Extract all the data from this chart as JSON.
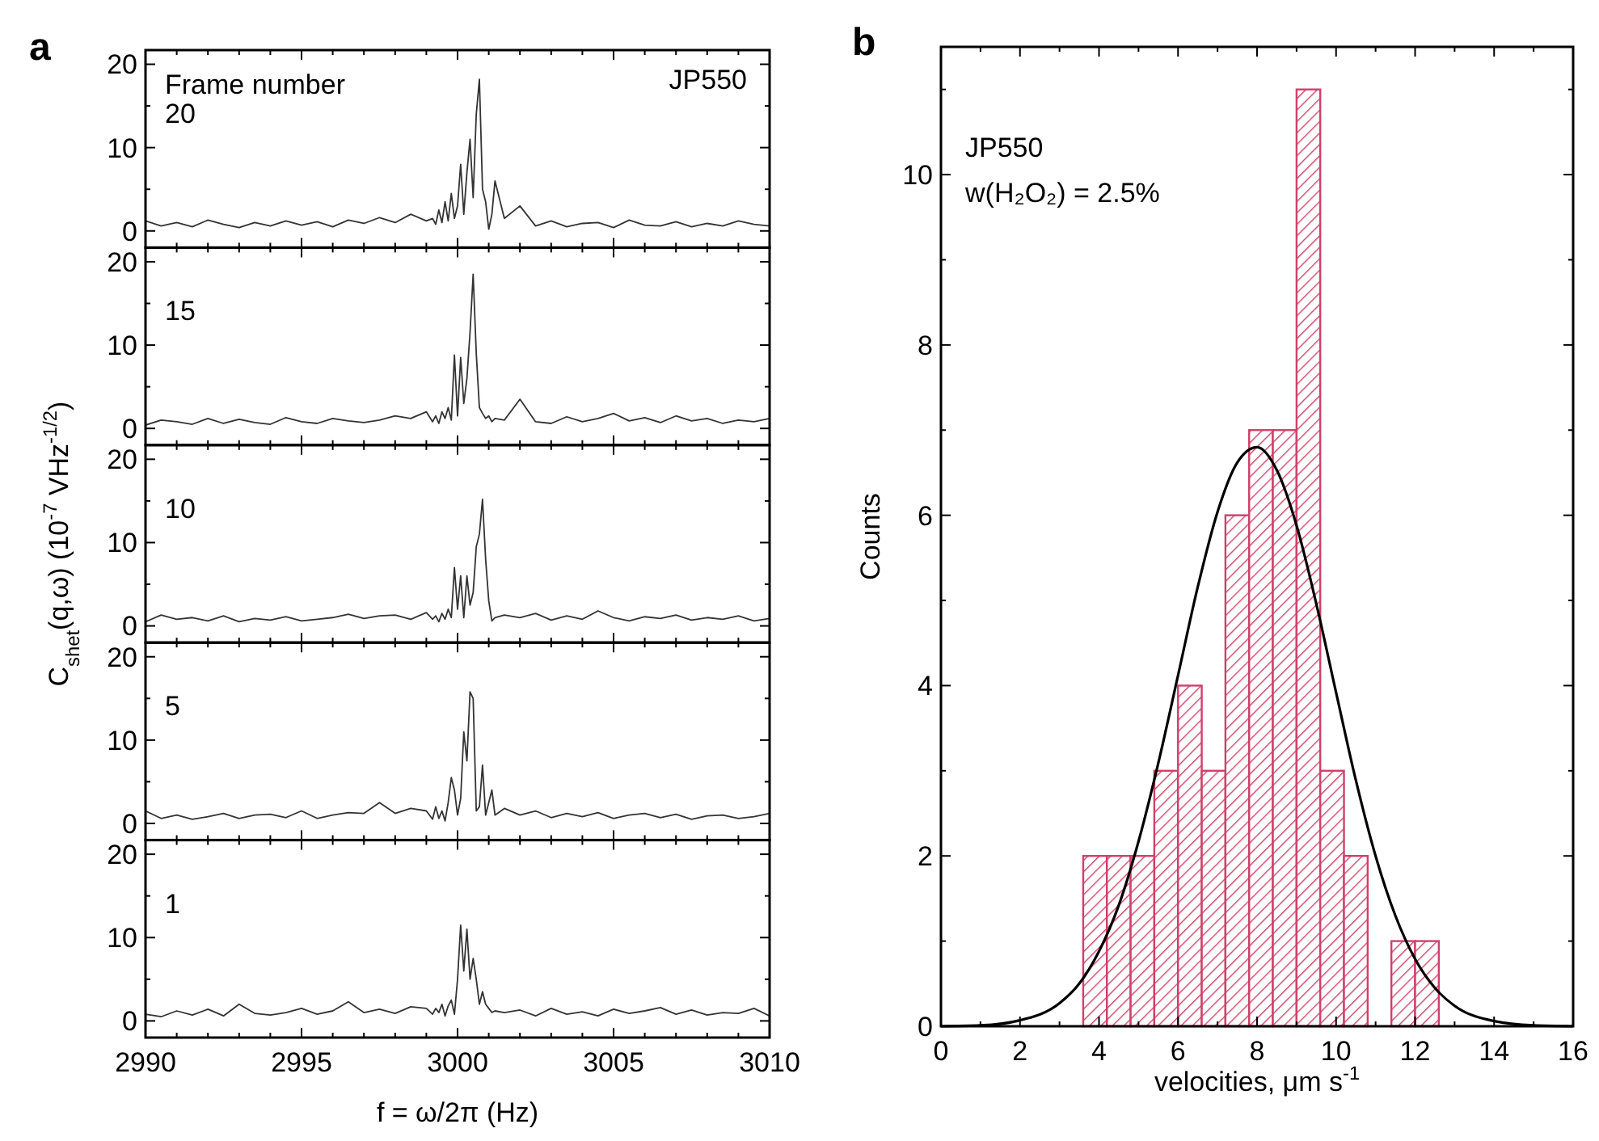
{
  "chart_data": [
    {
      "type": "line",
      "title": "a",
      "annotations": [
        "Frame number",
        "JP550"
      ],
      "x": [
        2990,
        2990.5,
        2991,
        2991.5,
        2992,
        2992.5,
        2993,
        2993.5,
        2994,
        2994.5,
        2995,
        2995.5,
        2996,
        2996.5,
        2997,
        2997.5,
        2998,
        2998.5,
        2999,
        2999.2,
        2999.3,
        2999.4,
        2999.5,
        2999.6,
        2999.7,
        2999.8,
        2999.9,
        3000,
        3000.1,
        3000.2,
        3000.3,
        3000.4,
        3000.5,
        3000.6,
        3000.7,
        3000.8,
        3000.9,
        3001,
        3001.1,
        3001.2,
        3001.5,
        3002,
        3002.5,
        3003,
        3003.5,
        3004,
        3004.5,
        3005,
        3005.5,
        3006,
        3006.5,
        3007,
        3007.5,
        3008,
        3008.5,
        3009,
        3009.5,
        3010
      ],
      "xlim": [
        2990,
        3010
      ],
      "xticks": [
        2990,
        {
          "value": 2991,
          "label": null
        },
        {
          "value": 2992,
          "label": null
        },
        {
          "value": 2993,
          "label": null
        },
        {
          "value": 2994,
          "label": null
        },
        2995,
        {
          "value": 2996,
          "label": null
        },
        {
          "value": 2997,
          "label": null
        },
        {
          "value": 2998,
          "label": null
        },
        {
          "value": 2999,
          "label": null
        },
        3000,
        {
          "value": 3001,
          "label": null
        },
        {
          "value": 3002,
          "label": null
        },
        {
          "value": 3003,
          "label": null
        },
        {
          "value": 3004,
          "label": null
        },
        3005,
        {
          "value": 3006,
          "label": null
        },
        {
          "value": 3007,
          "label": null
        },
        {
          "value": 3008,
          "label": null
        },
        {
          "value": 3009,
          "label": null
        },
        3010
      ],
      "ylim": [
        -2,
        21.7
      ],
      "yticks": [
        0,
        {
          "value": 5,
          "label": null
        },
        10,
        {
          "value": 15,
          "label": null
        },
        20
      ],
      "tick_labels": "y",
      "series": [
        {
          "name": "20",
          "color": "#333333",
          "values": [
            1.2,
            0.6,
            1.0,
            0.5,
            1.3,
            0.8,
            0.4,
            1.0,
            0.6,
            1.2,
            0.7,
            1.1,
            0.5,
            1.3,
            0.9,
            1.6,
            1.0,
            2.0,
            1.2,
            1.5,
            0.8,
            2.5,
            1.0,
            3.5,
            1.2,
            4.5,
            1.5,
            3.0,
            8.0,
            2.0,
            7.0,
            11.0,
            4.0,
            14.0,
            18.2,
            5.0,
            3.5,
            0.2,
            2.0,
            6.0,
            1.5,
            3.0,
            0.6,
            1.2,
            0.5,
            0.9,
            1.0,
            0.4,
            1.3,
            0.7,
            0.6,
            1.1,
            0.5,
            0.9,
            0.6,
            1.2,
            0.8,
            0.6
          ]
        }
      ]
    },
    {
      "type": "line",
      "x": [
        2990,
        2990.5,
        2991,
        2991.5,
        2992,
        2992.5,
        2993,
        2993.5,
        2994,
        2994.5,
        2995,
        2995.5,
        2996,
        2996.5,
        2997,
        2997.5,
        2998,
        2998.5,
        2999,
        2999.2,
        2999.3,
        2999.4,
        2999.5,
        2999.6,
        2999.7,
        2999.8,
        2999.9,
        3000,
        3000.1,
        3000.2,
        3000.3,
        3000.4,
        3000.5,
        3000.6,
        3000.7,
        3000.8,
        3000.9,
        3001,
        3001.1,
        3001.2,
        3001.5,
        3002,
        3002.5,
        3003,
        3003.5,
        3004,
        3004.5,
        3005,
        3005.5,
        3006,
        3006.5,
        3007,
        3007.5,
        3008,
        3008.5,
        3009,
        3009.5,
        3010
      ],
      "xlim": [
        2990,
        3010
      ],
      "xticks": [
        2990,
        {
          "value": 2991,
          "label": null
        },
        {
          "value": 2992,
          "label": null
        },
        {
          "value": 2993,
          "label": null
        },
        {
          "value": 2994,
          "label": null
        },
        2995,
        {
          "value": 2996,
          "label": null
        },
        {
          "value": 2997,
          "label": null
        },
        {
          "value": 2998,
          "label": null
        },
        {
          "value": 2999,
          "label": null
        },
        3000,
        {
          "value": 3001,
          "label": null
        },
        {
          "value": 3002,
          "label": null
        },
        {
          "value": 3003,
          "label": null
        },
        {
          "value": 3004,
          "label": null
        },
        3005,
        {
          "value": 3006,
          "label": null
        },
        {
          "value": 3007,
          "label": null
        },
        {
          "value": 3008,
          "label": null
        },
        {
          "value": 3009,
          "label": null
        },
        3010
      ],
      "ylim": [
        -2,
        21.7
      ],
      "yticks": [
        0,
        {
          "value": 5,
          "label": null
        },
        10,
        {
          "value": 15,
          "label": null
        },
        20
      ],
      "tick_labels": "y",
      "series": [
        {
          "name": "15",
          "color": "#333333",
          "values": [
            0.4,
            1.0,
            0.8,
            0.5,
            1.2,
            0.6,
            1.1,
            0.7,
            0.5,
            1.3,
            0.8,
            0.6,
            1.2,
            0.9,
            0.7,
            1.0,
            1.5,
            1.2,
            2.0,
            0.8,
            1.5,
            0.6,
            2.0,
            1.2,
            2.5,
            1.0,
            8.8,
            1.5,
            8.5,
            3.0,
            6.0,
            11.5,
            18.5,
            9.0,
            2.5,
            1.8,
            1.2,
            1.5,
            0.8,
            1.2,
            1.0,
            3.5,
            0.8,
            0.6,
            1.4,
            0.8,
            1.2,
            1.8,
            0.9,
            1.3,
            0.7,
            1.5,
            0.9,
            1.2,
            0.6,
            1.0,
            0.8,
            1.2
          ]
        }
      ]
    },
    {
      "type": "line",
      "ylabel": "C$_{shet}$(q,ω)  (10$^{-7}$ VHz$^{-1/2}$)",
      "x": [
        2990,
        2990.5,
        2991,
        2991.5,
        2992,
        2992.5,
        2993,
        2993.5,
        2994,
        2994.5,
        2995,
        2995.5,
        2996,
        2996.5,
        2997,
        2997.5,
        2998,
        2998.5,
        2999,
        2999.2,
        2999.3,
        2999.4,
        2999.5,
        2999.6,
        2999.7,
        2999.8,
        2999.9,
        3000,
        3000.1,
        3000.2,
        3000.3,
        3000.4,
        3000.5,
        3000.6,
        3000.7,
        3000.8,
        3000.9,
        3001,
        3001.1,
        3001.2,
        3001.5,
        3002,
        3002.5,
        3003,
        3003.5,
        3004,
        3004.5,
        3005,
        3005.5,
        3006,
        3006.5,
        3007,
        3007.5,
        3008,
        3008.5,
        3009,
        3009.5,
        3010
      ],
      "xlim": [
        2990,
        3010
      ],
      "xticks": [
        2990,
        {
          "value": 2991,
          "label": null
        },
        {
          "value": 2992,
          "label": null
        },
        {
          "value": 2993,
          "label": null
        },
        {
          "value": 2994,
          "label": null
        },
        2995,
        {
          "value": 2996,
          "label": null
        },
        {
          "value": 2997,
          "label": null
        },
        {
          "value": 2998,
          "label": null
        },
        {
          "value": 2999,
          "label": null
        },
        3000,
        {
          "value": 3001,
          "label": null
        },
        {
          "value": 3002,
          "label": null
        },
        {
          "value": 3003,
          "label": null
        },
        {
          "value": 3004,
          "label": null
        },
        3005,
        {
          "value": 3006,
          "label": null
        },
        {
          "value": 3007,
          "label": null
        },
        {
          "value": 3008,
          "label": null
        },
        {
          "value": 3009,
          "label": null
        },
        3010
      ],
      "ylim": [
        -2,
        21.7
      ],
      "yticks": [
        0,
        {
          "value": 5,
          "label": null
        },
        10,
        {
          "value": 15,
          "label": null
        },
        20
      ],
      "tick_labels": "y",
      "series": [
        {
          "name": "10",
          "color": "#333333",
          "values": [
            0.5,
            1.3,
            0.8,
            1.0,
            0.6,
            1.2,
            0.5,
            0.9,
            0.7,
            1.1,
            0.6,
            0.8,
            1.0,
            1.4,
            0.9,
            1.2,
            1.3,
            0.8,
            1.6,
            0.8,
            1.2,
            0.5,
            1.5,
            0.8,
            2.0,
            1.0,
            7.0,
            2.0,
            6.0,
            1.0,
            6.0,
            2.5,
            4.0,
            9.5,
            11.0,
            15.2,
            8.0,
            3.0,
            0.6,
            1.0,
            1.3,
            1.0,
            1.5,
            0.7,
            1.2,
            0.8,
            1.8,
            1.0,
            0.6,
            1.1,
            0.9,
            1.3,
            0.7,
            1.0,
            0.8,
            1.2,
            0.6,
            0.9
          ]
        }
      ]
    },
    {
      "type": "line",
      "x": [
        2990,
        2990.5,
        2991,
        2991.5,
        2992,
        2992.5,
        2993,
        2993.5,
        2994,
        2994.5,
        2995,
        2995.5,
        2996,
        2996.5,
        2997,
        2997.5,
        2998,
        2998.5,
        2999,
        2999.2,
        2999.3,
        2999.4,
        2999.5,
        2999.6,
        2999.7,
        2999.8,
        2999.9,
        3000,
        3000.1,
        3000.2,
        3000.3,
        3000.4,
        3000.5,
        3000.6,
        3000.7,
        3000.8,
        3000.9,
        3001,
        3001.1,
        3001.2,
        3001.5,
        3002,
        3002.5,
        3003,
        3003.5,
        3004,
        3004.5,
        3005,
        3005.5,
        3006,
        3006.5,
        3007,
        3007.5,
        3008,
        3008.5,
        3009,
        3009.5,
        3010
      ],
      "xlim": [
        2990,
        3010
      ],
      "xticks": [
        2990,
        {
          "value": 2991,
          "label": null
        },
        {
          "value": 2992,
          "label": null
        },
        {
          "value": 2993,
          "label": null
        },
        {
          "value": 2994,
          "label": null
        },
        2995,
        {
          "value": 2996,
          "label": null
        },
        {
          "value": 2997,
          "label": null
        },
        {
          "value": 2998,
          "label": null
        },
        {
          "value": 2999,
          "label": null
        },
        3000,
        {
          "value": 3001,
          "label": null
        },
        {
          "value": 3002,
          "label": null
        },
        {
          "value": 3003,
          "label": null
        },
        {
          "value": 3004,
          "label": null
        },
        3005,
        {
          "value": 3006,
          "label": null
        },
        {
          "value": 3007,
          "label": null
        },
        {
          "value": 3008,
          "label": null
        },
        {
          "value": 3009,
          "label": null
        },
        3010
      ],
      "ylim": [
        -2,
        21.7
      ],
      "yticks": [
        0,
        {
          "value": 5,
          "label": null
        },
        10,
        {
          "value": 15,
          "label": null
        },
        20
      ],
      "tick_labels": "y",
      "series": [
        {
          "name": "5",
          "color": "#333333",
          "values": [
            1.5,
            0.6,
            1.0,
            0.5,
            0.8,
            1.2,
            0.6,
            1.0,
            1.1,
            0.7,
            1.5,
            0.6,
            1.0,
            1.3,
            1.2,
            2.5,
            1.2,
            1.8,
            1.5,
            0.5,
            2.0,
            0.6,
            1.5,
            0.3,
            2.5,
            5.5,
            4.0,
            1.0,
            3.0,
            11.0,
            7.5,
            15.8,
            15.0,
            1.5,
            2.0,
            7.0,
            1.0,
            2.5,
            4.0,
            1.0,
            1.8,
            1.0,
            1.5,
            0.7,
            1.2,
            0.8,
            1.3,
            0.6,
            1.0,
            1.2,
            0.7,
            1.1,
            0.5,
            0.9,
            1.0,
            0.6,
            0.8,
            1.2
          ]
        }
      ]
    },
    {
      "type": "line",
      "xlabel": "f = ω/2π (Hz)",
      "x": [
        2990,
        2990.5,
        2991,
        2991.5,
        2992,
        2992.5,
        2993,
        2993.5,
        2994,
        2994.5,
        2995,
        2995.5,
        2996,
        2996.5,
        2997,
        2997.5,
        2998,
        2998.5,
        2999,
        2999.2,
        2999.3,
        2999.4,
        2999.5,
        2999.6,
        2999.7,
        2999.8,
        2999.9,
        3000,
        3000.1,
        3000.2,
        3000.3,
        3000.4,
        3000.5,
        3000.6,
        3000.7,
        3000.8,
        3000.9,
        3001,
        3001.1,
        3001.2,
        3001.5,
        3002,
        3002.5,
        3003,
        3003.5,
        3004,
        3004.5,
        3005,
        3005.5,
        3006,
        3006.5,
        3007,
        3007.5,
        3008,
        3008.5,
        3009,
        3009.5,
        3010
      ],
      "xlim": [
        2990,
        3010
      ],
      "xticks": [
        2990,
        {
          "value": 2991,
          "label": null
        },
        {
          "value": 2992,
          "label": null
        },
        {
          "value": 2993,
          "label": null
        },
        {
          "value": 2994,
          "label": null
        },
        2995,
        {
          "value": 2996,
          "label": null
        },
        {
          "value": 2997,
          "label": null
        },
        {
          "value": 2998,
          "label": null
        },
        {
          "value": 2999,
          "label": null
        },
        3000,
        {
          "value": 3001,
          "label": null
        },
        {
          "value": 3002,
          "label": null
        },
        {
          "value": 3003,
          "label": null
        },
        {
          "value": 3004,
          "label": null
        },
        3005,
        {
          "value": 3006,
          "label": null
        },
        {
          "value": 3007,
          "label": null
        },
        {
          "value": 3008,
          "label": null
        },
        {
          "value": 3009,
          "label": null
        },
        3010
      ],
      "ylim": [
        -2,
        21.7
      ],
      "yticks": [
        0,
        {
          "value": 5,
          "label": null
        },
        10,
        {
          "value": 15,
          "label": null
        },
        20
      ],
      "series": [
        {
          "name": "1",
          "color": "#333333",
          "values": [
            0.8,
            0.5,
            1.2,
            0.7,
            1.4,
            0.6,
            2.0,
            0.9,
            0.7,
            1.0,
            1.5,
            0.8,
            1.2,
            2.3,
            1.0,
            1.4,
            0.9,
            1.7,
            1.5,
            0.8,
            1.5,
            1.0,
            2.0,
            0.6,
            1.8,
            2.5,
            0.8,
            5.0,
            11.5,
            6.0,
            11.0,
            5.0,
            7.5,
            5.0,
            2.0,
            3.5,
            2.0,
            1.5,
            1.0,
            1.2,
            1.0,
            1.3,
            0.6,
            1.5,
            0.8,
            1.1,
            0.6,
            1.4,
            0.9,
            1.2,
            1.6,
            0.8,
            1.3,
            0.7,
            1.0,
            0.9,
            1.5,
            0.6
          ]
        }
      ]
    },
    {
      "type": "histogram",
      "title": "b",
      "xlabel": "velocities, μm s$^{-1}$",
      "ylabel": "Counts",
      "annotations": [
        "JP550",
        "w(H₂O₂) = 2.5%"
      ],
      "color": "#d0406a",
      "bins": [
        3.6,
        4.2,
        4.8,
        5.4,
        6.0,
        6.6,
        7.2,
        7.8,
        8.4,
        9.0,
        9.6,
        10.2,
        10.8,
        11.4,
        12.0,
        12.6
      ],
      "values": [
        2,
        2,
        2,
        3,
        4,
        3,
        6,
        7,
        7,
        11,
        3,
        2,
        0,
        1,
        1
      ],
      "xlim": [
        0,
        16
      ],
      "xticks": [
        0,
        {
          "value": 1,
          "label": null
        },
        2,
        {
          "value": 3,
          "label": null
        },
        4,
        {
          "value": 5,
          "label": null
        },
        6,
        {
          "value": 7,
          "label": null
        },
        8,
        {
          "value": 9,
          "label": null
        },
        10,
        {
          "value": 11,
          "label": null
        },
        12,
        {
          "value": 13,
          "label": null
        },
        14,
        {
          "value": 15,
          "label": null
        },
        16
      ],
      "ylim": [
        0,
        11.5
      ],
      "yticks": [
        0,
        {
          "value": 1,
          "label": null
        },
        2,
        {
          "value": 3,
          "label": null
        },
        4,
        {
          "value": 5,
          "label": null
        },
        6,
        {
          "value": 7,
          "label": null
        },
        8,
        {
          "value": 9,
          "label": null
        },
        10,
        {
          "value": 11,
          "label": null
        }
      ],
      "series": [
        {
          "type": "line",
          "color": "#000000",
          "x": [
            0,
            1,
            2,
            3,
            3.5,
            4,
            4.5,
            5,
            5.5,
            6,
            6.5,
            7,
            7.5,
            8,
            8.5,
            9,
            9.5,
            10,
            10.5,
            11,
            11.5,
            12,
            12.5,
            13,
            14,
            15,
            16
          ],
          "values": [
            0,
            0.01,
            0.07,
            0.27,
            0.5,
            0.88,
            1.42,
            2.17,
            3.09,
            4.12,
            5.16,
            6.04,
            6.62,
            6.8,
            6.53,
            5.88,
            4.96,
            3.92,
            2.89,
            2.0,
            1.3,
            0.79,
            0.45,
            0.24,
            0.06,
            0.01,
            0
          ]
        }
      ]
    }
  ]
}
